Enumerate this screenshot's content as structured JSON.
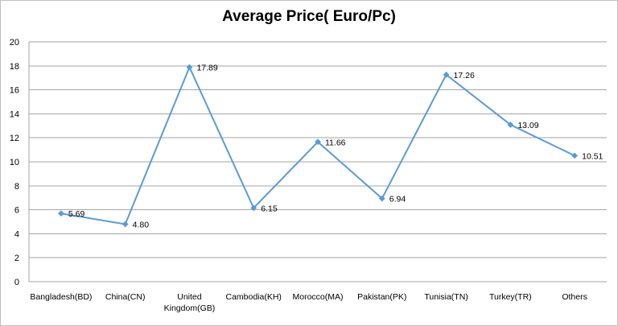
{
  "chart_data": {
    "type": "line",
    "title": "Average Price( Euro/Pc)",
    "categories": [
      [
        "Bangladesh(BD)"
      ],
      [
        "China(CN)"
      ],
      [
        "United",
        "Kingdom(GB)"
      ],
      [
        "Cambodia(KH)"
      ],
      [
        "Morocco(MA)"
      ],
      [
        "Pakistan(PK)"
      ],
      [
        "Tunisia(TN)"
      ],
      [
        "Turkey(TR)"
      ],
      [
        "Others"
      ]
    ],
    "values": [
      5.69,
      4.8,
      17.89,
      6.15,
      11.66,
      6.94,
      17.26,
      13.09,
      10.51
    ],
    "data_labels": [
      "5.69",
      "4.80",
      "17.89",
      "6.15",
      "11.66",
      "6.94",
      "17.26",
      "13.09",
      "10.51"
    ],
    "ylim": [
      0,
      20
    ],
    "yticks": [
      "0",
      "2",
      "4",
      "6",
      "8",
      "10",
      "12",
      "14",
      "16",
      "18",
      "20"
    ],
    "grid": true,
    "series_color": "#5b9bd5",
    "grid_color": "#a6a6a6"
  }
}
